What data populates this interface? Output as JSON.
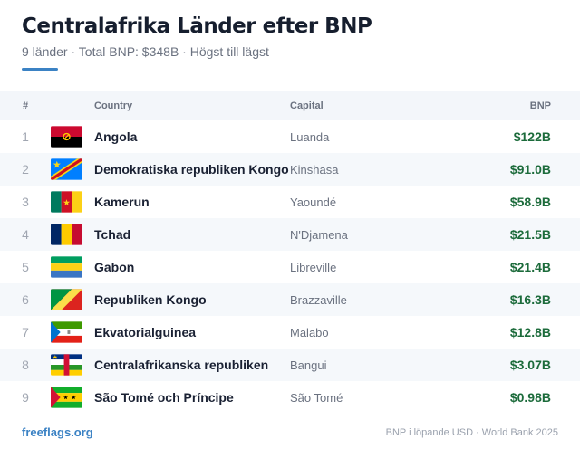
{
  "header": {
    "title": "Centralafrika Länder efter BNP",
    "subtitle": "9 länder · Total BNP: $348B · Högst till lägst"
  },
  "columns": {
    "rank": "#",
    "country": "Country",
    "capital": "Capital",
    "gdp": "BNP"
  },
  "rows": [
    {
      "rank": "1",
      "country": "Angola",
      "capital": "Luanda",
      "gdp": "$122B",
      "flag": "angola-flag"
    },
    {
      "rank": "2",
      "country": "Demokratiska republiken Kongo",
      "capital": "Kinshasa",
      "gdp": "$91.0B",
      "flag": "dr-congo-flag"
    },
    {
      "rank": "3",
      "country": "Kamerun",
      "capital": "Yaoundé",
      "gdp": "$58.9B",
      "flag": "cameroon-flag"
    },
    {
      "rank": "4",
      "country": "Tchad",
      "capital": "N'Djamena",
      "gdp": "$21.5B",
      "flag": "chad-flag"
    },
    {
      "rank": "5",
      "country": "Gabon",
      "capital": "Libreville",
      "gdp": "$21.4B",
      "flag": "gabon-flag"
    },
    {
      "rank": "6",
      "country": "Republiken Kongo",
      "capital": "Brazzaville",
      "gdp": "$16.3B",
      "flag": "congo-flag"
    },
    {
      "rank": "7",
      "country": "Ekvatorialguinea",
      "capital": "Malabo",
      "gdp": "$12.8B",
      "flag": "equatorial-guinea-flag"
    },
    {
      "rank": "8",
      "country": "Centralafrikanska republiken",
      "capital": "Bangui",
      "gdp": "$3.07B",
      "flag": "central-african-republic-flag"
    },
    {
      "rank": "9",
      "country": "São Tomé och Príncipe",
      "capital": "São Tomé",
      "gdp": "$0.98B",
      "flag": "sao-tome-flag"
    }
  ],
  "footer": {
    "brand": "freeflags.org",
    "source": "BNP i löpande USD · World Bank 2025"
  },
  "colors": {
    "accent": "#3b82c4",
    "gdp": "#1c6b3b",
    "row_alt": "#f5f8fb",
    "header_bg": "#f3f6fa"
  }
}
